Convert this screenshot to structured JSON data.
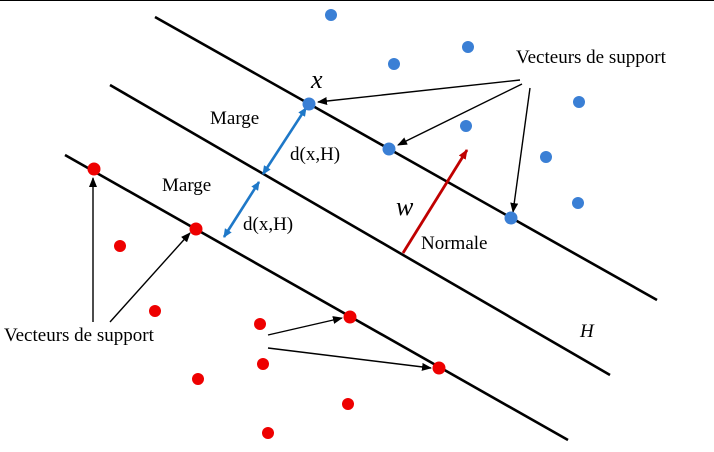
{
  "labels": {
    "support_vectors_top": "Vecteurs de support",
    "support_vectors_bottom": "Vecteurs de support",
    "margin_upper": "Marge",
    "margin_lower": "Marge",
    "distance_upper": "d(x,H)",
    "distance_lower": "d(x,H)",
    "point_x": "x",
    "weight_vector": "w",
    "normal": "Normale",
    "hyperplane": "H"
  },
  "colors": {
    "positive_class": "#3a7fd5",
    "negative_class": "#ee0000",
    "margin_arrow": "#1e78c8",
    "normal_arrow": "#c00000",
    "lines": "#000000"
  }
}
